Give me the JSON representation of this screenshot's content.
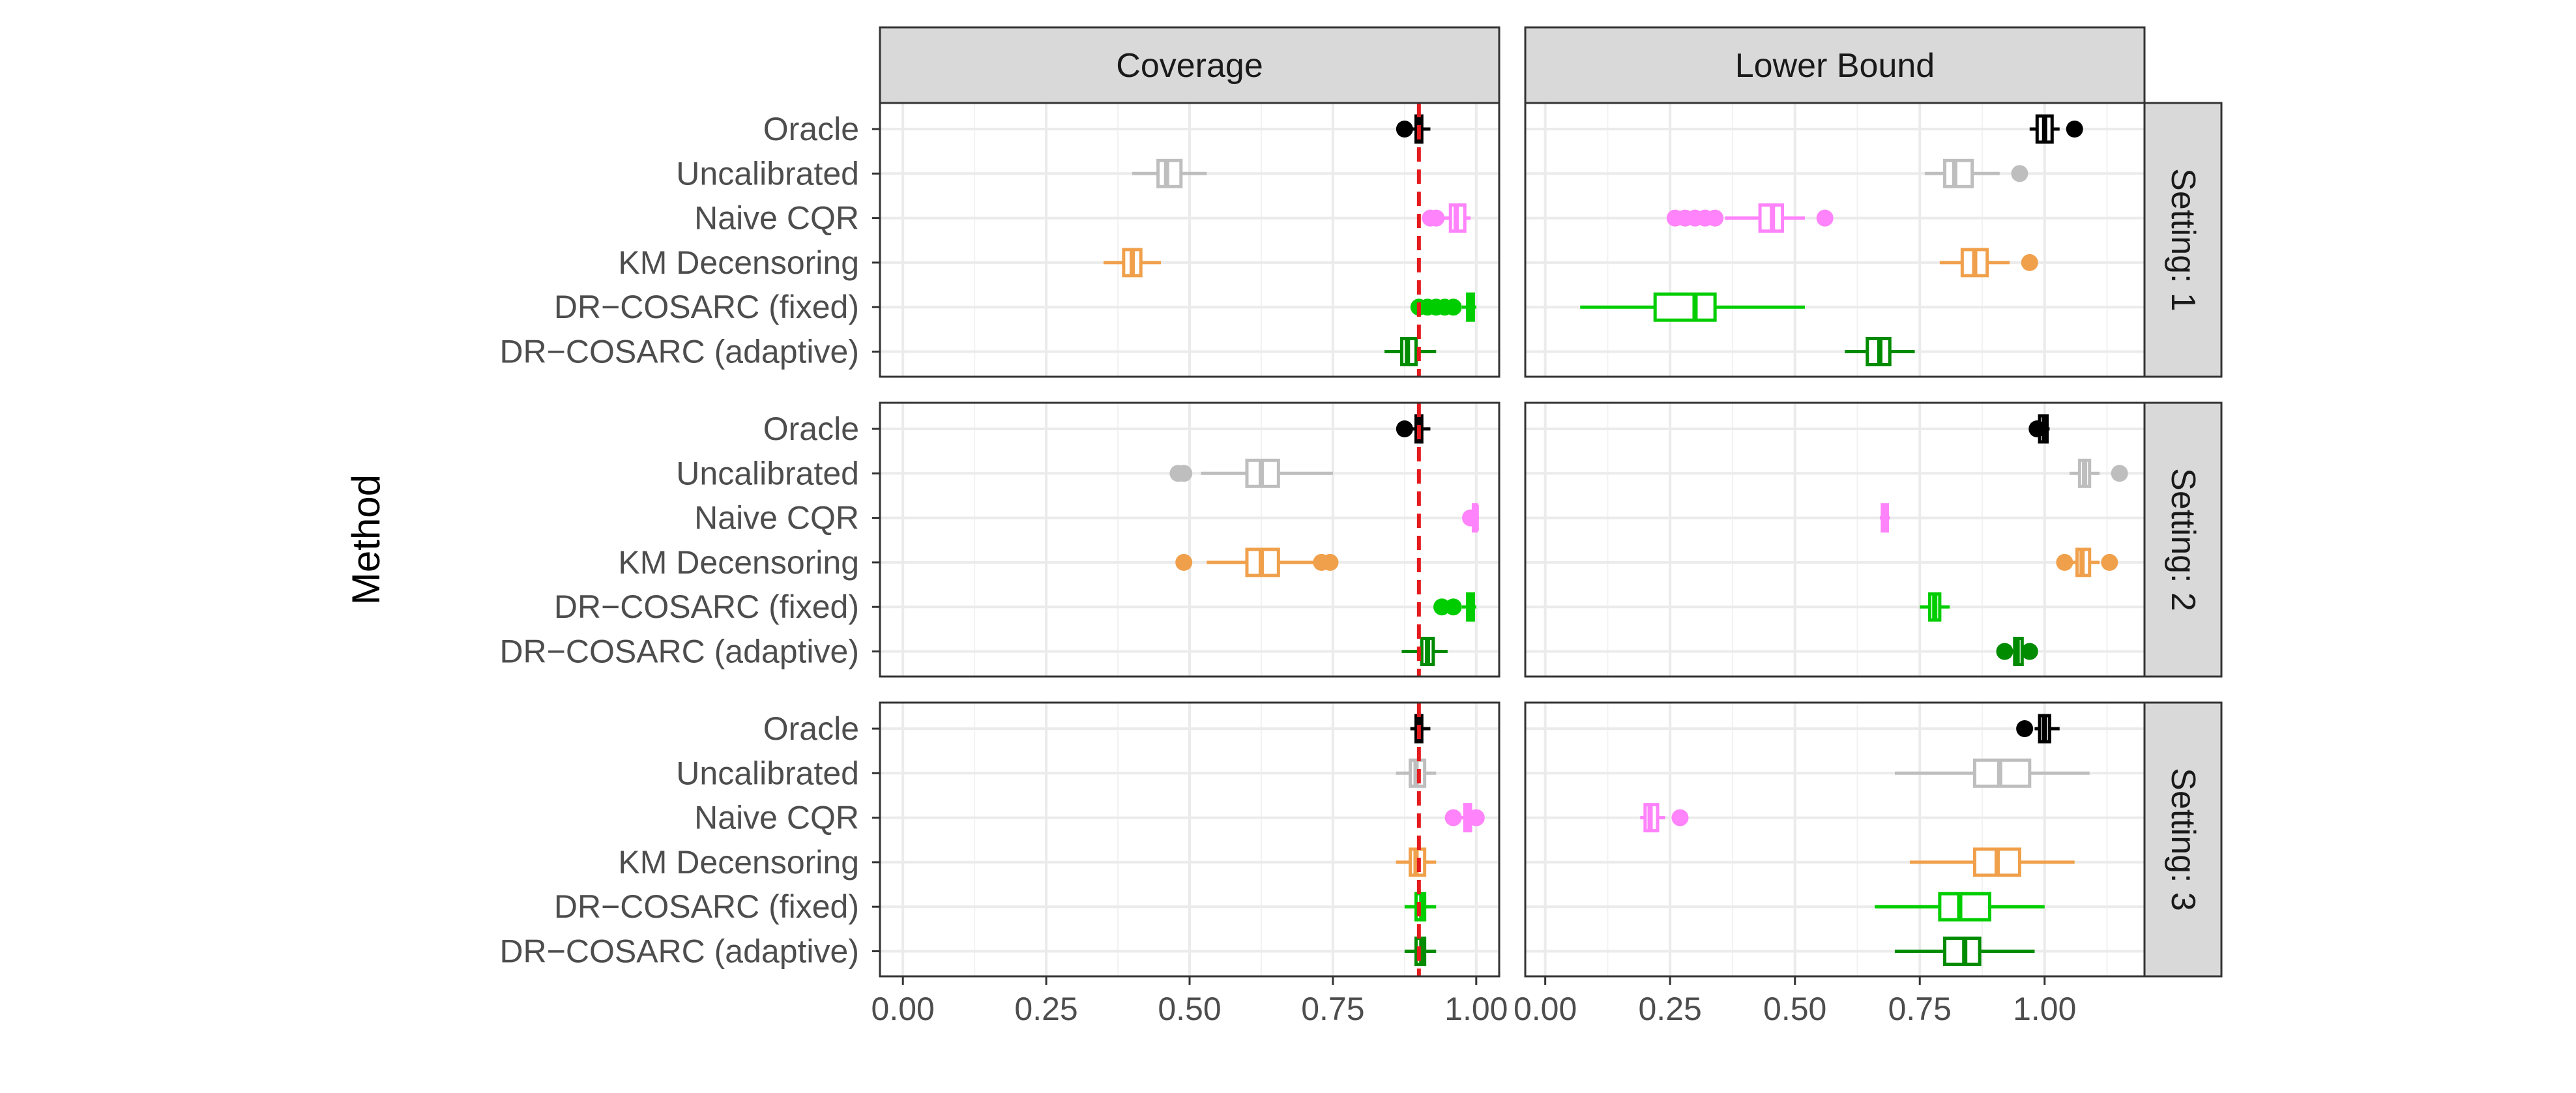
{
  "chart_data": {
    "type": "boxplot",
    "title": "",
    "ylabel": "Method",
    "xlabel": "",
    "facet_columns": [
      "Coverage",
      "Lower Bound"
    ],
    "facet_rows": [
      "Setting: 1",
      "Setting: 2",
      "Setting: 3"
    ],
    "methods": [
      "Oracle",
      "Uncalibrated",
      "Naive CQR",
      "KM Decensoring",
      "DR−COSARC (fixed)",
      "DR−COSARC (adaptive)"
    ],
    "method_colors": [
      "#000000",
      "#BEBEBE",
      "#FF83FA",
      "#F0A04B",
      "#00CD00",
      "#008B00"
    ],
    "reference_line": {
      "panel_column": "Coverage",
      "value": 0.9,
      "color": "#E41A1C",
      "style": "dashed"
    },
    "columns": [
      {
        "name": "Coverage",
        "xlim": [
          -0.04,
          1.04
        ],
        "ticks": [
          0,
          0.25,
          0.5,
          0.75,
          1
        ],
        "tick_labels": [
          "0.00",
          "0.25",
          "0.50",
          "0.75",
          "1.00"
        ]
      },
      {
        "name": "Lower Bound",
        "xlim": [
          -0.04,
          1.2
        ],
        "ticks": [
          0,
          0.25,
          0.5,
          0.75,
          1
        ],
        "tick_labels": [
          "0.00",
          "0.25",
          "0.50",
          "0.75",
          "1.00"
        ]
      }
    ],
    "panels": [
      {
        "row": "Setting: 1",
        "column": "Coverage",
        "boxes": [
          {
            "method": "Oracle",
            "wlo": 0.88,
            "q1": 0.895,
            "med": 0.9,
            "q3": 0.905,
            "whi": 0.92,
            "outliers": [
              0.875
            ]
          },
          {
            "method": "Uncalibrated",
            "wlo": 0.4,
            "q1": 0.445,
            "med": 0.46,
            "q3": 0.485,
            "whi": 0.53,
            "outliers": []
          },
          {
            "method": "Naive CQR",
            "wlo": 0.91,
            "q1": 0.955,
            "med": 0.965,
            "q3": 0.98,
            "whi": 0.99,
            "outliers": [
              0.92,
              0.93
            ]
          },
          {
            "method": "KM Decensoring",
            "wlo": 0.35,
            "q1": 0.385,
            "med": 0.4,
            "q3": 0.415,
            "whi": 0.45,
            "outliers": []
          },
          {
            "method": "DR−COSARC (fixed)",
            "wlo": 0.975,
            "q1": 0.985,
            "med": 0.99,
            "q3": 0.995,
            "whi": 1.0,
            "outliers": [
              0.9,
              0.915,
              0.93,
              0.945,
              0.96
            ]
          },
          {
            "method": "DR−COSARC (adaptive)",
            "wlo": 0.84,
            "q1": 0.87,
            "med": 0.88,
            "q3": 0.895,
            "whi": 0.93,
            "outliers": []
          }
        ]
      },
      {
        "row": "Setting: 1",
        "column": "Lower Bound",
        "boxes": [
          {
            "method": "Oracle",
            "wlo": 0.97,
            "q1": 0.985,
            "med": 1.0,
            "q3": 1.015,
            "whi": 1.03,
            "outliers": [
              1.06
            ]
          },
          {
            "method": "Uncalibrated",
            "wlo": 0.76,
            "q1": 0.8,
            "med": 0.82,
            "q3": 0.855,
            "whi": 0.91,
            "outliers": [
              0.95
            ]
          },
          {
            "method": "Naive CQR",
            "wlo": 0.36,
            "q1": 0.43,
            "med": 0.455,
            "q3": 0.475,
            "whi": 0.52,
            "outliers": [
              0.26,
              0.28,
              0.3,
              0.32,
              0.34,
              0.56
            ]
          },
          {
            "method": "KM Decensoring",
            "wlo": 0.79,
            "q1": 0.835,
            "med": 0.86,
            "q3": 0.885,
            "whi": 0.93,
            "outliers": [
              0.97
            ]
          },
          {
            "method": "DR−COSARC (fixed)",
            "wlo": 0.07,
            "q1": 0.22,
            "med": 0.3,
            "q3": 0.34,
            "whi": 0.52,
            "outliers": []
          },
          {
            "method": "DR−COSARC (adaptive)",
            "wlo": 0.6,
            "q1": 0.645,
            "med": 0.67,
            "q3": 0.69,
            "whi": 0.74,
            "outliers": []
          }
        ]
      },
      {
        "row": "Setting: 2",
        "column": "Coverage",
        "boxes": [
          {
            "method": "Oracle",
            "wlo": 0.88,
            "q1": 0.895,
            "med": 0.9,
            "q3": 0.905,
            "whi": 0.92,
            "outliers": [
              0.875
            ]
          },
          {
            "method": "Uncalibrated",
            "wlo": 0.52,
            "q1": 0.6,
            "med": 0.625,
            "q3": 0.655,
            "whi": 0.75,
            "outliers": [
              0.48,
              0.49
            ]
          },
          {
            "method": "Naive CQR",
            "wlo": 0.99,
            "q1": 0.995,
            "med": 1.0,
            "q3": 1.0,
            "whi": 1.0,
            "outliers": [
              0.99
            ]
          },
          {
            "method": "KM Decensoring",
            "wlo": 0.53,
            "q1": 0.6,
            "med": 0.625,
            "q3": 0.655,
            "whi": 0.72,
            "outliers": [
              0.49,
              0.73,
              0.745
            ]
          },
          {
            "method": "DR−COSARC (fixed)",
            "wlo": 0.975,
            "q1": 0.985,
            "med": 0.99,
            "q3": 0.995,
            "whi": 1.0,
            "outliers": [
              0.94,
              0.96
            ]
          },
          {
            "method": "DR−COSARC (adaptive)",
            "wlo": 0.87,
            "q1": 0.905,
            "med": 0.915,
            "q3": 0.925,
            "whi": 0.95,
            "outliers": []
          }
        ]
      },
      {
        "row": "Setting: 2",
        "column": "Lower Bound",
        "boxes": [
          {
            "method": "Oracle",
            "wlo": 0.985,
            "q1": 0.99,
            "med": 1.0,
            "q3": 1.005,
            "whi": 1.01,
            "outliers": [
              0.985
            ]
          },
          {
            "method": "Uncalibrated",
            "wlo": 1.05,
            "q1": 1.07,
            "med": 1.08,
            "q3": 1.09,
            "whi": 1.11,
            "outliers": [
              1.15
            ]
          },
          {
            "method": "Naive CQR",
            "wlo": 0.67,
            "q1": 0.675,
            "med": 0.68,
            "q3": 0.685,
            "whi": 0.69,
            "outliers": []
          },
          {
            "method": "KM Decensoring",
            "wlo": 1.05,
            "q1": 1.065,
            "med": 1.075,
            "q3": 1.09,
            "whi": 1.11,
            "outliers": [
              1.04,
              1.13
            ]
          },
          {
            "method": "DR−COSARC (fixed)",
            "wlo": 0.75,
            "q1": 0.77,
            "med": 0.78,
            "q3": 0.79,
            "whi": 0.81,
            "outliers": []
          },
          {
            "method": "DR−COSARC (adaptive)",
            "wlo": 0.93,
            "q1": 0.94,
            "med": 0.945,
            "q3": 0.955,
            "whi": 0.97,
            "outliers": [
              0.92,
              0.97
            ]
          }
        ]
      },
      {
        "row": "Setting: 3",
        "column": "Coverage",
        "boxes": [
          {
            "method": "Oracle",
            "wlo": 0.885,
            "q1": 0.895,
            "med": 0.9,
            "q3": 0.905,
            "whi": 0.92,
            "outliers": []
          },
          {
            "method": "Uncalibrated",
            "wlo": 0.86,
            "q1": 0.885,
            "med": 0.895,
            "q3": 0.91,
            "whi": 0.93,
            "outliers": []
          },
          {
            "method": "Naive CQR",
            "wlo": 0.97,
            "q1": 0.98,
            "med": 0.985,
            "q3": 0.99,
            "whi": 1.0,
            "outliers": [
              0.96,
              1.0
            ]
          },
          {
            "method": "KM Decensoring",
            "wlo": 0.86,
            "q1": 0.885,
            "med": 0.895,
            "q3": 0.91,
            "whi": 0.93,
            "outliers": []
          },
          {
            "method": "DR−COSARC (fixed)",
            "wlo": 0.875,
            "q1": 0.895,
            "med": 0.905,
            "q3": 0.91,
            "whi": 0.93,
            "outliers": []
          },
          {
            "method": "DR−COSARC (adaptive)",
            "wlo": 0.875,
            "q1": 0.895,
            "med": 0.905,
            "q3": 0.91,
            "whi": 0.93,
            "outliers": []
          }
        ]
      },
      {
        "row": "Setting: 3",
        "column": "Lower Bound",
        "boxes": [
          {
            "method": "Oracle",
            "wlo": 0.98,
            "q1": 0.99,
            "med": 1.0,
            "q3": 1.01,
            "whi": 1.03,
            "outliers": [
              0.96
            ]
          },
          {
            "method": "Uncalibrated",
            "wlo": 0.7,
            "q1": 0.86,
            "med": 0.91,
            "q3": 0.97,
            "whi": 1.09,
            "outliers": []
          },
          {
            "method": "Naive CQR",
            "wlo": 0.19,
            "q1": 0.2,
            "med": 0.21,
            "q3": 0.225,
            "whi": 0.24,
            "outliers": [
              0.27
            ]
          },
          {
            "method": "KM Decensoring",
            "wlo": 0.73,
            "q1": 0.86,
            "med": 0.905,
            "q3": 0.95,
            "whi": 1.06,
            "outliers": []
          },
          {
            "method": "DR−COSARC (fixed)",
            "wlo": 0.66,
            "q1": 0.79,
            "med": 0.83,
            "q3": 0.89,
            "whi": 1.0,
            "outliers": []
          },
          {
            "method": "DR−COSARC (adaptive)",
            "wlo": 0.7,
            "q1": 0.8,
            "med": 0.84,
            "q3": 0.87,
            "whi": 0.98,
            "outliers": []
          }
        ]
      }
    ]
  }
}
